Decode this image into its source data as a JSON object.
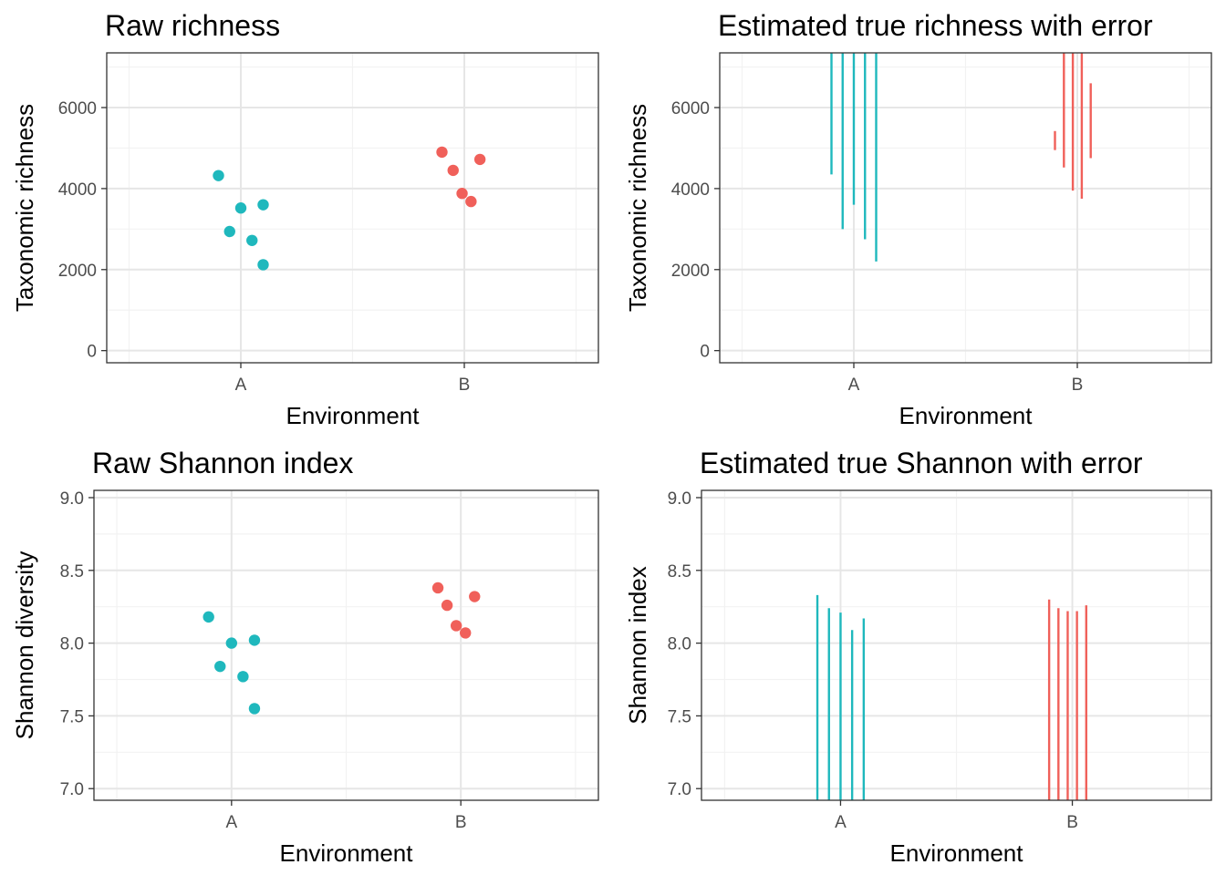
{
  "colors": {
    "A": "#1fb8bd",
    "B": "#f0605a",
    "panel_border": "#333333",
    "grid_major": "#e6e6e6",
    "grid_minor": "#f2f2f2"
  },
  "chart_data": [
    {
      "type": "scatter",
      "title": "Raw richness",
      "xlabel": "Environment",
      "ylabel": "Taxonomic richness",
      "categories": [
        "A",
        "B"
      ],
      "ylim": [
        -300,
        7350
      ],
      "yticks": [
        0,
        2000,
        4000,
        6000
      ],
      "ytick_labels": [
        "0",
        "2000",
        "4000",
        "6000"
      ],
      "grid": true,
      "legend": "none",
      "series": [
        {
          "category": "A",
          "points": [
            {
              "x": -0.1,
              "y": 4320
            },
            {
              "x": -0.05,
              "y": 2940
            },
            {
              "x": 0.0,
              "y": 3520
            },
            {
              "x": 0.05,
              "y": 2720
            },
            {
              "x": 0.1,
              "y": 3600
            },
            {
              "x": 0.1,
              "y": 2120
            }
          ]
        },
        {
          "category": "B",
          "points": [
            {
              "x": -0.1,
              "y": 4900
            },
            {
              "x": -0.05,
              "y": 4450
            },
            {
              "x": -0.01,
              "y": 3880
            },
            {
              "x": 0.03,
              "y": 3680
            },
            {
              "x": 0.07,
              "y": 4720
            }
          ]
        }
      ]
    },
    {
      "type": "errorbar",
      "title": "Estimated true richness with error",
      "xlabel": "Environment",
      "ylabel": "Taxonomic richness",
      "categories": [
        "A",
        "B"
      ],
      "ylim": [
        -300,
        7350
      ],
      "yticks": [
        0,
        2000,
        4000,
        6000
      ],
      "ytick_labels": [
        "0",
        "2000",
        "4000",
        "6000"
      ],
      "grid": true,
      "legend": "none",
      "series": [
        {
          "category": "A",
          "bars": [
            {
              "x": -0.1,
              "low": 4350,
              "high": 7350
            },
            {
              "x": -0.05,
              "low": 3000,
              "high": 7350
            },
            {
              "x": 0.0,
              "low": 3600,
              "high": 7350
            },
            {
              "x": 0.05,
              "low": 2750,
              "high": 7350
            },
            {
              "x": 0.1,
              "low": 2200,
              "high": 7350
            }
          ]
        },
        {
          "category": "B",
          "bars": [
            {
              "x": -0.1,
              "low": 4950,
              "high": 5420
            },
            {
              "x": -0.06,
              "low": 4520,
              "high": 7350
            },
            {
              "x": -0.02,
              "low": 3950,
              "high": 7350
            },
            {
              "x": 0.02,
              "low": 3750,
              "high": 7350
            },
            {
              "x": 0.06,
              "low": 4750,
              "high": 6600
            }
          ]
        }
      ]
    },
    {
      "type": "scatter",
      "title": "Raw Shannon index",
      "xlabel": "Environment",
      "ylabel": "Shannon diversity",
      "categories": [
        "A",
        "B"
      ],
      "ylim": [
        6.92,
        9.05
      ],
      "yticks": [
        7.0,
        7.5,
        8.0,
        8.5,
        9.0
      ],
      "ytick_labels": [
        "7.0",
        "7.5",
        "8.0",
        "8.5",
        "9.0"
      ],
      "grid": true,
      "legend": "none",
      "series": [
        {
          "category": "A",
          "points": [
            {
              "x": -0.1,
              "y": 8.18
            },
            {
              "x": -0.05,
              "y": 7.84
            },
            {
              "x": 0.0,
              "y": 8.0
            },
            {
              "x": 0.05,
              "y": 7.77
            },
            {
              "x": 0.1,
              "y": 8.02
            },
            {
              "x": 0.1,
              "y": 7.55
            }
          ]
        },
        {
          "category": "B",
          "points": [
            {
              "x": -0.1,
              "y": 8.38
            },
            {
              "x": -0.06,
              "y": 8.26
            },
            {
              "x": -0.02,
              "y": 8.12
            },
            {
              "x": 0.02,
              "y": 8.07
            },
            {
              "x": 0.06,
              "y": 8.32
            }
          ]
        }
      ]
    },
    {
      "type": "errorbar",
      "title": "Estimated true Shannon with error",
      "xlabel": "Environment",
      "ylabel": "Shannon index",
      "categories": [
        "A",
        "B"
      ],
      "ylim": [
        6.92,
        9.05
      ],
      "yticks": [
        7.0,
        7.5,
        8.0,
        8.5,
        9.0
      ],
      "ytick_labels": [
        "7.0",
        "7.5",
        "8.0",
        "8.5",
        "9.0"
      ],
      "grid": true,
      "legend": "none",
      "series": [
        {
          "category": "A",
          "bars": [
            {
              "x": -0.1,
              "low": 6.92,
              "high": 8.33
            },
            {
              "x": -0.05,
              "low": 6.92,
              "high": 8.24
            },
            {
              "x": 0.0,
              "low": 6.92,
              "high": 8.21
            },
            {
              "x": 0.05,
              "low": 6.92,
              "high": 8.09
            },
            {
              "x": 0.1,
              "low": 6.92,
              "high": 8.17
            }
          ]
        },
        {
          "category": "B",
          "bars": [
            {
              "x": -0.1,
              "low": 6.92,
              "high": 8.3
            },
            {
              "x": -0.06,
              "low": 6.92,
              "high": 8.24
            },
            {
              "x": -0.02,
              "low": 6.92,
              "high": 8.22
            },
            {
              "x": 0.02,
              "low": 6.92,
              "high": 8.22
            },
            {
              "x": 0.06,
              "low": 6.92,
              "high": 8.26
            }
          ]
        }
      ]
    }
  ]
}
